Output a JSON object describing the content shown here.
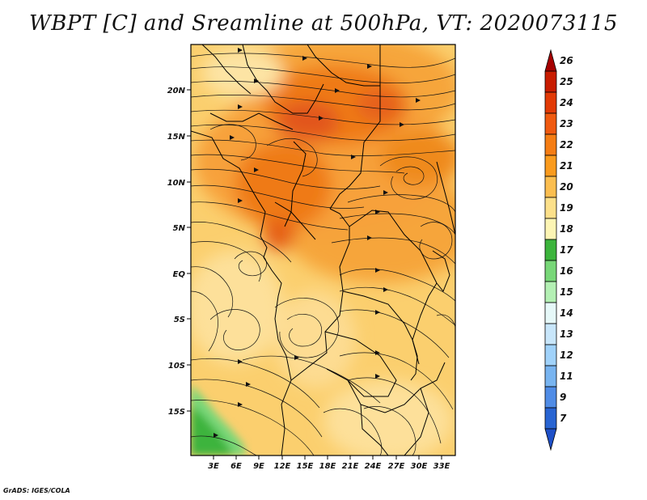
{
  "title": "WBPT [C] and Sreamline at 500hPa, VT: 2020073115",
  "credit": "GrADS: IGES/COLA",
  "lat_labels": [
    "20N",
    "15N",
    "10N",
    "5N",
    "EQ",
    "5S",
    "10S",
    "15S"
  ],
  "lon_labels": [
    "3E",
    "6E",
    "9E",
    "12E",
    "15E",
    "18E",
    "21E",
    "24E",
    "27E",
    "30E",
    "33E"
  ],
  "colorbar": {
    "labels": [
      "26",
      "25",
      "24",
      "23",
      "22",
      "21",
      "20",
      "19",
      "18",
      "17",
      "16",
      "15",
      "14",
      "13",
      "12",
      "11",
      "9",
      "7"
    ],
    "colors": [
      "#a50000",
      "#c81c00",
      "#e23a06",
      "#f05a10",
      "#f57d14",
      "#fa9b1e",
      "#fbbe50",
      "#fce08a",
      "#fdf5b4",
      "#3cb43c",
      "#78d778",
      "#b4f0b4",
      "#e6f8f8",
      "#c8e6fa",
      "#a0d2fa",
      "#78b4f0",
      "#508ce6",
      "#2864d2",
      "#1e50c8"
    ]
  },
  "colors": {
    "frame": "#000000",
    "base_fill": "#fbcf6e",
    "hot": "#f07a14",
    "hotter": "#e2501a",
    "cool": "#fde6a0",
    "green": "#3cb43c",
    "light_green": "#78d778"
  }
}
